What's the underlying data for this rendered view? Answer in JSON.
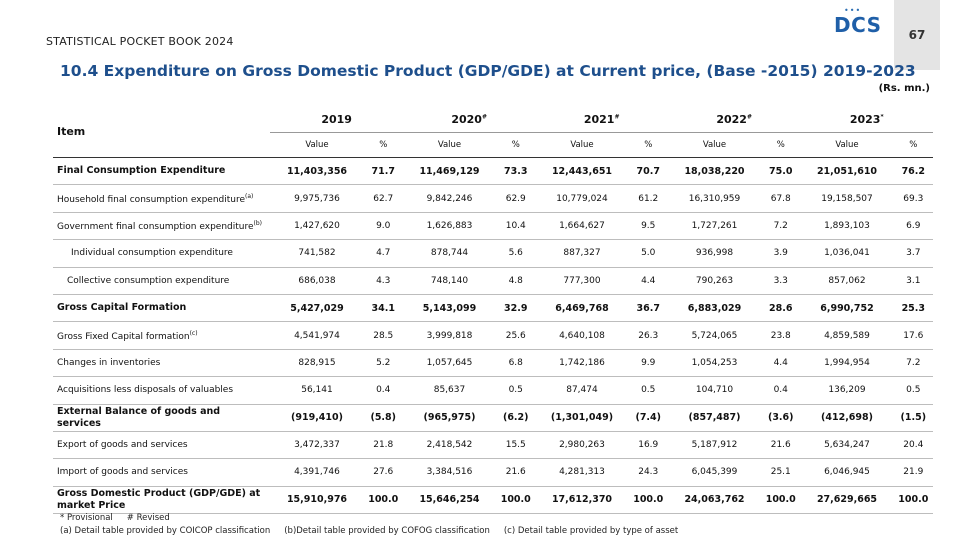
{
  "header": {
    "publication": "STATISTICAL POCKET BOOK 2024",
    "logo_dots": "•••",
    "logo_text": "DCS",
    "page_number": "67"
  },
  "title": "10.4 Expenditure on Gross Domestic Product (GDP/GDE) at Current price, (Base -2015) 2019-2023",
  "unit": "(Rs. mn.)",
  "table": {
    "item_header": "Item",
    "years": [
      {
        "label": "2019",
        "mark": ""
      },
      {
        "label": "2020",
        "mark": "#"
      },
      {
        "label": "2021",
        "mark": "#"
      },
      {
        "label": "2022",
        "mark": "#"
      },
      {
        "label": "2023",
        "mark": "*"
      }
    ],
    "value_header": "Value",
    "pct_header": "%",
    "rows": [
      {
        "item": "Final Consumption Expenditure",
        "sup": "",
        "bold": true,
        "indent": 0,
        "cells": [
          "11,403,356",
          "71.7",
          "11,469,129",
          "73.3",
          "12,443,651",
          "70.7",
          "18,038,220",
          "75.0",
          "21,051,610",
          "76.2"
        ]
      },
      {
        "item": "Household final consumption expenditure",
        "sup": "(a)",
        "bold": false,
        "indent": 0,
        "cells": [
          "9,975,736",
          "62.7",
          "9,842,246",
          "62.9",
          "10,779,024",
          "61.2",
          "16,310,959",
          "67.8",
          "19,158,507",
          "69.3"
        ]
      },
      {
        "item": "Government final consumption expenditure",
        "sup": "(b)",
        "bold": false,
        "indent": 0,
        "cells": [
          "1,427,620",
          "9.0",
          "1,626,883",
          "10.4",
          "1,664,627",
          "9.5",
          "1,727,261",
          "7.2",
          "1,893,103",
          "6.9"
        ]
      },
      {
        "item": "Individual consumption expenditure",
        "sup": "",
        "bold": false,
        "indent": 1,
        "cells": [
          "741,582",
          "4.7",
          "878,744",
          "5.6",
          "887,327",
          "5.0",
          "936,998",
          "3.9",
          "1,036,041",
          "3.7"
        ]
      },
      {
        "item": "Collective consumption expenditure",
        "sup": "",
        "bold": false,
        "indent": 2,
        "cells": [
          "686,038",
          "4.3",
          "748,140",
          "4.8",
          "777,300",
          "4.4",
          "790,263",
          "3.3",
          "857,062",
          "3.1"
        ]
      },
      {
        "item": "Gross Capital Formation",
        "sup": "",
        "bold": true,
        "indent": 0,
        "cells": [
          "5,427,029",
          "34.1",
          "5,143,099",
          "32.9",
          "6,469,768",
          "36.7",
          "6,883,029",
          "28.6",
          "6,990,752",
          "25.3"
        ]
      },
      {
        "item": "Gross Fixed Capital formation",
        "sup": "(c)",
        "bold": false,
        "indent": 0,
        "cells": [
          "4,541,974",
          "28.5",
          "3,999,818",
          "25.6",
          "4,640,108",
          "26.3",
          "5,724,065",
          "23.8",
          "4,859,589",
          "17.6"
        ]
      },
      {
        "item": "Changes in inventories",
        "sup": "",
        "bold": false,
        "indent": 0,
        "cells": [
          "828,915",
          "5.2",
          "1,057,645",
          "6.8",
          "1,742,186",
          "9.9",
          "1,054,253",
          "4.4",
          "1,994,954",
          "7.2"
        ]
      },
      {
        "item": "Acquisitions less disposals of valuables",
        "sup": "",
        "bold": false,
        "indent": 0,
        "cells": [
          "56,141",
          "0.4",
          "85,637",
          "0.5",
          "87,474",
          "0.5",
          "104,710",
          "0.4",
          "136,209",
          "0.5"
        ]
      },
      {
        "item": "External Balance of goods and services",
        "sup": "",
        "bold": true,
        "indent": 0,
        "cells": [
          "(919,410)",
          "(5.8)",
          "(965,975)",
          "(6.2)",
          "(1,301,049)",
          "(7.4)",
          "(857,487)",
          "(3.6)",
          "(412,698)",
          "(1.5)"
        ]
      },
      {
        "item": "Export of goods and services",
        "sup": "",
        "bold": false,
        "indent": 0,
        "cells": [
          "3,472,337",
          "21.8",
          "2,418,542",
          "15.5",
          "2,980,263",
          "16.9",
          "5,187,912",
          "21.6",
          "5,634,247",
          "20.4"
        ]
      },
      {
        "item": "Import of goods and services",
        "sup": "",
        "bold": false,
        "indent": 0,
        "cells": [
          "4,391,746",
          "27.6",
          "3,384,516",
          "21.6",
          "4,281,313",
          "24.3",
          "6,045,399",
          "25.1",
          "6,046,945",
          "21.9"
        ]
      },
      {
        "item": "Gross Domestic Product (GDP/GDE) at market Price",
        "sup": "",
        "bold": true,
        "indent": 0,
        "cells": [
          "15,910,976",
          "100.0",
          "15,646,254",
          "100.0",
          "17,612,370",
          "100.0",
          "24,063,762",
          "100.0",
          "27,629,665",
          "100.0"
        ]
      }
    ]
  },
  "footnotes": {
    "line1": [
      "* Provisional",
      "# Revised"
    ],
    "line2": [
      "(a) Detail table provided by COICOP classification",
      "(b)Detail table provided by COFOG classification",
      "(c) Detail table provided by type of asset"
    ]
  }
}
